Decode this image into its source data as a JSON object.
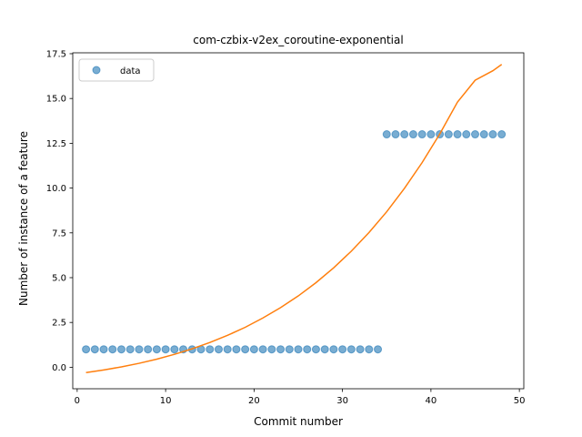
{
  "chart_data": {
    "type": "scatter",
    "title": "com-czbix-v2ex_coroutine-exponential",
    "xlabel": "Commit number",
    "ylabel": "Number of instance of a feature",
    "xlim": [
      -0.5,
      50.5
    ],
    "ylim": [
      -1.2,
      17.55
    ],
    "xticks": [
      0,
      10,
      20,
      30,
      40,
      50
    ],
    "xtick_labels": [
      "0",
      "10",
      "20",
      "30",
      "40",
      "50"
    ],
    "yticks": [
      0.0,
      2.5,
      5.0,
      7.5,
      10.0,
      12.5,
      15.0,
      17.5
    ],
    "ytick_labels": [
      "0.0",
      "2.5",
      "5.0",
      "7.5",
      "10.0",
      "12.5",
      "15.0",
      "17.5"
    ],
    "grid": false,
    "legend": {
      "placement": "top-left",
      "entries": [
        "data"
      ]
    },
    "series": [
      {
        "name": "data",
        "kind": "scatter",
        "color": "#1f77b4",
        "x": [
          1,
          2,
          3,
          4,
          5,
          6,
          7,
          8,
          9,
          10,
          11,
          12,
          13,
          14,
          15,
          16,
          17,
          18,
          19,
          20,
          21,
          22,
          23,
          24,
          25,
          26,
          27,
          28,
          29,
          30,
          31,
          32,
          33,
          34,
          35,
          36,
          37,
          38,
          39,
          40,
          41,
          42,
          43,
          44,
          45,
          46,
          47,
          48
        ],
        "y": [
          1,
          1,
          1,
          1,
          1,
          1,
          1,
          1,
          1,
          1,
          1,
          1,
          1,
          1,
          1,
          1,
          1,
          1,
          1,
          1,
          1,
          1,
          1,
          1,
          1,
          1,
          1,
          1,
          1,
          1,
          1,
          1,
          1,
          1,
          13,
          13,
          13,
          13,
          13,
          13,
          13,
          13,
          13,
          13,
          13,
          13,
          13,
          13
        ]
      },
      {
        "kind": "line",
        "color": "#ff7f0e",
        "x": [
          1,
          3,
          5,
          7,
          9,
          11,
          13,
          15,
          17,
          19,
          21,
          23,
          25,
          27,
          29,
          31,
          33,
          35,
          37,
          39,
          41,
          43,
          45,
          47,
          48
        ],
        "y": [
          -0.3,
          -0.15,
          0.02,
          0.22,
          0.45,
          0.72,
          1.03,
          1.38,
          1.78,
          2.23,
          2.75,
          3.33,
          3.98,
          4.72,
          5.55,
          6.48,
          7.52,
          8.68,
          9.98,
          11.42,
          13.02,
          14.8,
          16.02,
          16.55,
          16.9
        ]
      }
    ]
  }
}
